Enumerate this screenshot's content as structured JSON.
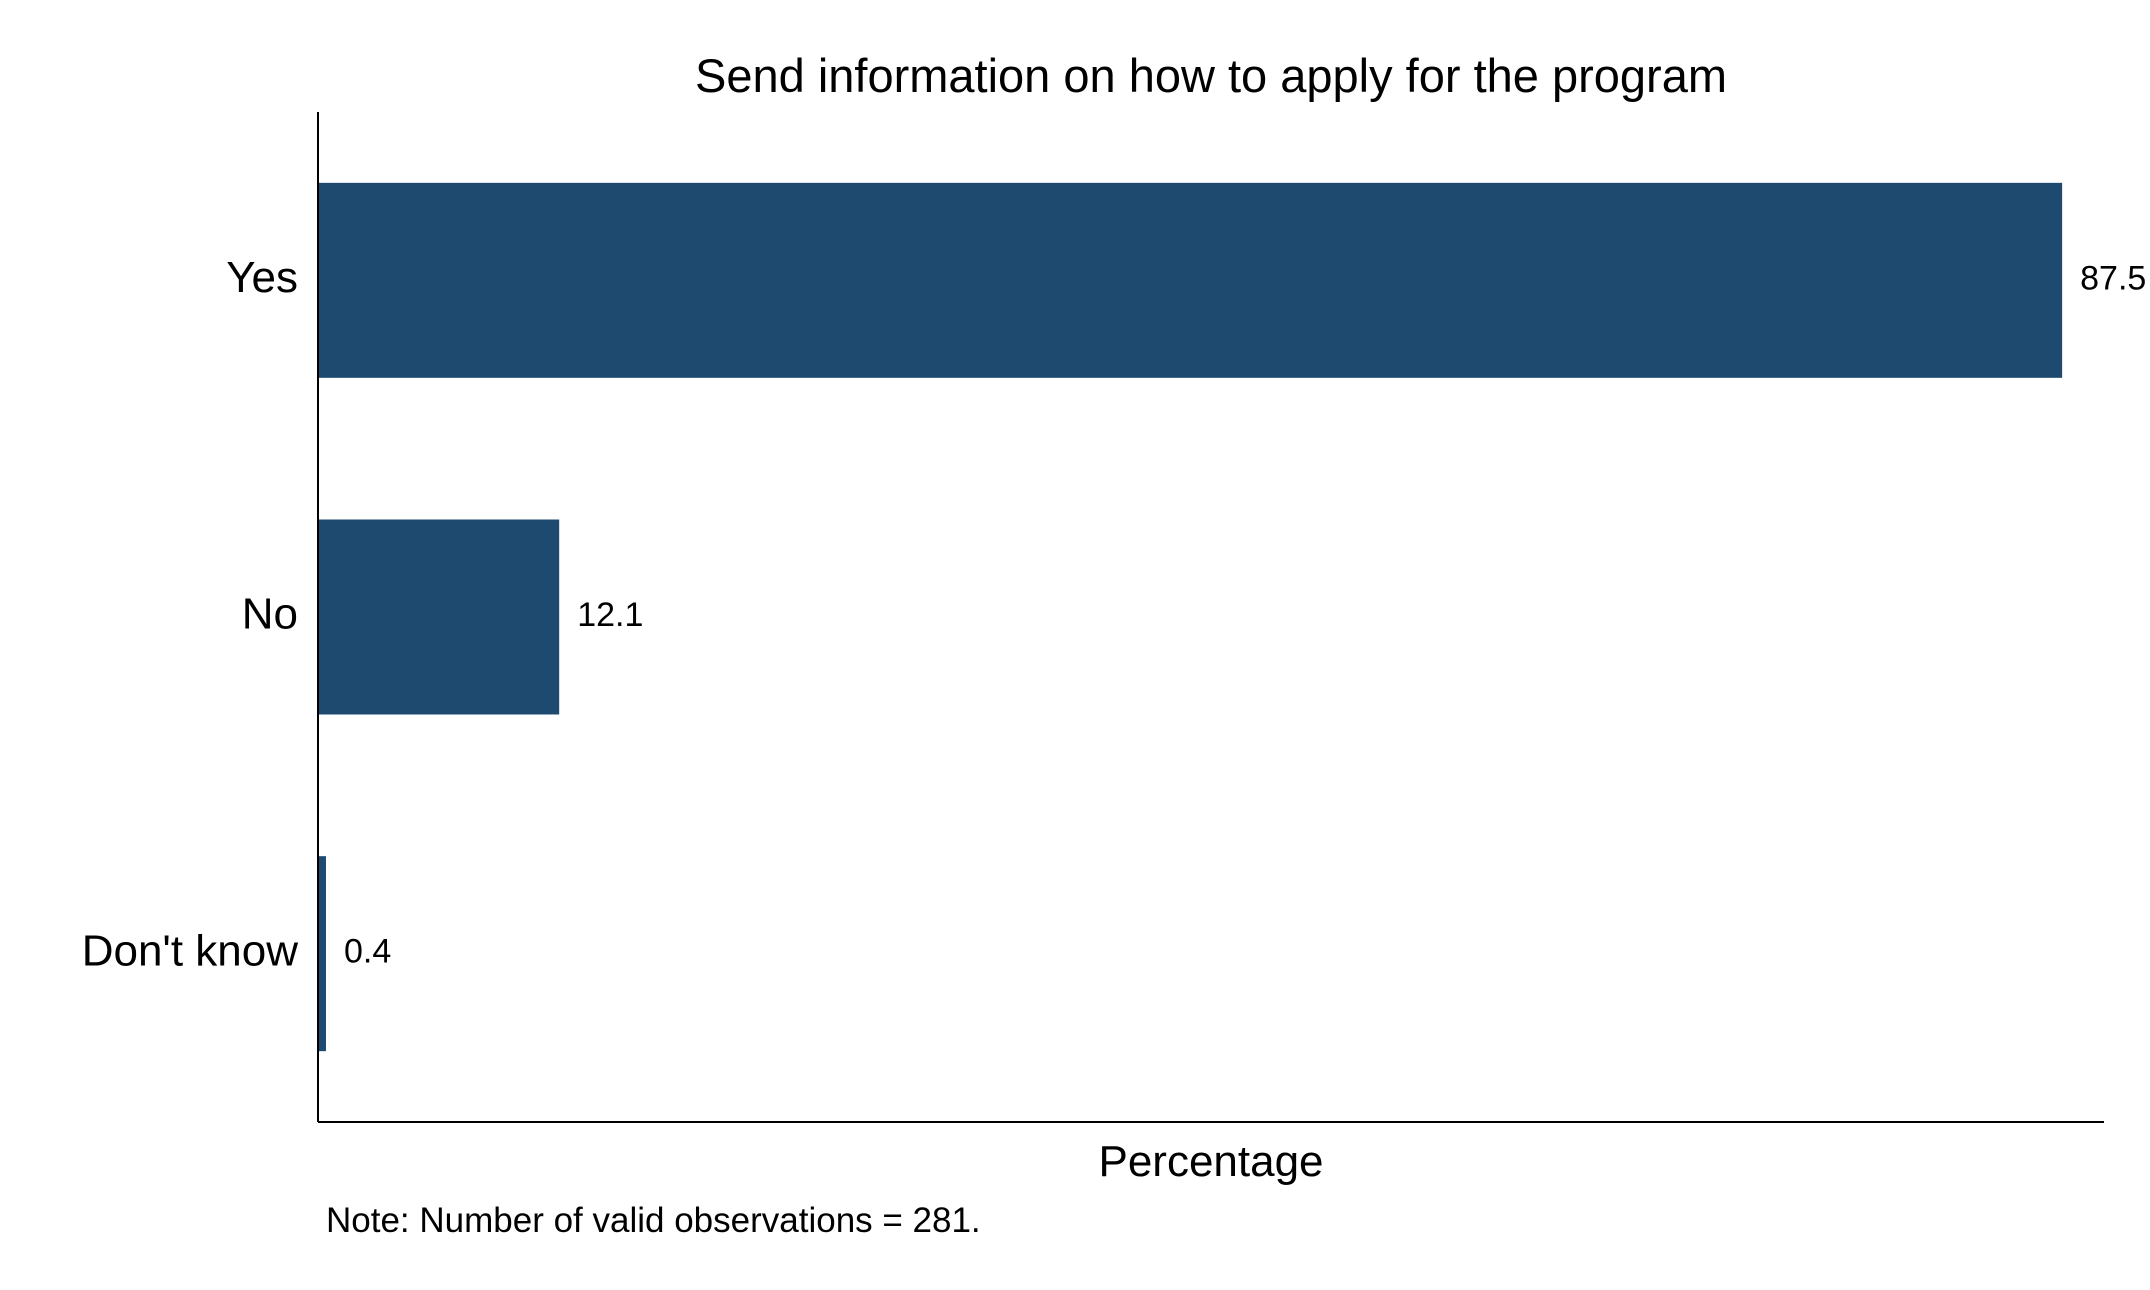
{
  "chart_data": {
    "type": "bar",
    "orientation": "horizontal",
    "title": "Send information on how to apply for the program",
    "categories": [
      "Yes",
      "No",
      "Don't know"
    ],
    "values": [
      87.5,
      12.1,
      0.4
    ],
    "value_labels": [
      "87.5",
      "12.1",
      "0.4"
    ],
    "xlabel": "Percentage",
    "ylabel": "",
    "xlim": [
      0,
      89.6
    ],
    "grid": false,
    "legend": "none",
    "bar_color": "#1f4a70",
    "note": "Note: Number of valid observations = 281."
  }
}
